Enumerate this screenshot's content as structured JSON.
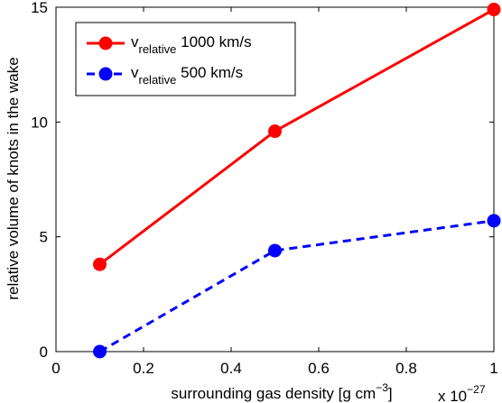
{
  "chart_data": {
    "type": "line",
    "xlabel": "surrounding gas density [g cm",
    "xlabel_sup": "−3",
    "xlabel_end": "]",
    "ylabel": "relative volume of knots in the wake",
    "x_multiplier": "x 10",
    "x_multiplier_exp": "−27",
    "xlim": [
      0,
      1
    ],
    "ylim": [
      0,
      15
    ],
    "x_ticks": [
      0,
      0.2,
      0.4,
      0.6,
      0.8,
      1
    ],
    "x_tick_labels": [
      "0",
      "0.2",
      "0.4",
      "0.6",
      "0.8",
      "1"
    ],
    "y_ticks": [
      0,
      5,
      10,
      15
    ],
    "y_tick_labels": [
      "0",
      "5",
      "10",
      "15"
    ],
    "grid": false,
    "legend_position": "top-left",
    "series": [
      {
        "name": "1000 km/s",
        "legend_main": "v",
        "legend_sub": "relative",
        "legend_tail": " 1000 km/s",
        "color": "#ff0000",
        "line_style": "solid",
        "x": [
          0.1,
          0.5,
          1.0
        ],
        "y": [
          3.8,
          9.6,
          14.9
        ]
      },
      {
        "name": "500 km/s",
        "legend_main": "v",
        "legend_sub": "relative",
        "legend_tail": " 500 km/s",
        "color": "#0000ff",
        "line_style": "dashed",
        "x": [
          0.1,
          0.5,
          1.0
        ],
        "y": [
          0.0,
          4.4,
          5.7
        ]
      }
    ]
  }
}
